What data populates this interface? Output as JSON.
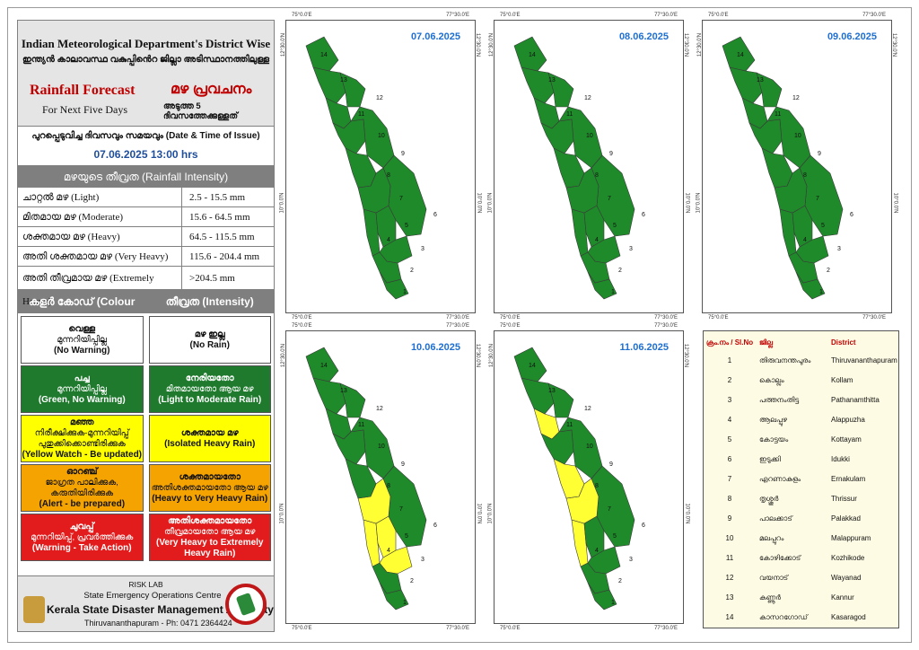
{
  "header": {
    "title": "Indian Meteorological Department's District Wise",
    "title_ml": "ഇന്ത്യൻ കാലാവസ്ഥ വകുപ്പിൻെറ ജില്ലാ അടിസ്ഥാനത്തിലുള്ള",
    "forecast_en": "Rainfall Forecast",
    "forecast_ml": "മഴ പ്രവചനം",
    "subtitle_en": "For Next Five Days",
    "subtitle_ml": "അടുത്ത 5 ദിവസത്തേക്കുള്ളത്"
  },
  "issue": {
    "label": "പുറപ്പെടുവിച്ച ദിവസവും സമയവും (Date & Time of Issue)",
    "value": "07.06.2025  13:00 hrs"
  },
  "intensity": {
    "heading": "മഴയുടെ തീവ്രത (Rainfall Intensity)",
    "rows": [
      {
        "label": "ചാറ്റൽ മഴ (Light)",
        "range": "2.5 - 15.5 mm"
      },
      {
        "label": "മിതമായ മഴ (Moderate)",
        "range": "15.6 - 64.5 mm"
      },
      {
        "label": "ശക്തമായ മഴ (Heavy)",
        "range": "64.5 - 115.5 mm"
      },
      {
        "label": "അതി ശക്തമായ മഴ (Very Heavy)",
        "range": "115.6 - 204.4 mm"
      },
      {
        "label": "അതി തീവ്രമായ മഴ (Extremely Heavy)",
        "range": ">204.5 mm"
      }
    ]
  },
  "colour_code": {
    "col1": "കളർ കോഡ് (Colour Code)",
    "col2": "തീവ്രത (Intensity)",
    "rows": [
      {
        "code_ml": "വെള്ള",
        "code_sub": "മുന്നറിയിപ്പില്ല",
        "code_en": "(No Warning)",
        "int_ml": "മഴ ഇല്ല",
        "int_en": "(No Rain)",
        "color": "#ffffff"
      },
      {
        "code_ml": "പച്ച",
        "code_sub": "മുന്നറിയിപ്പില്ല",
        "code_en": "(Green, No Warning)",
        "int_ml": "നേരിയതോ",
        "int_sub": "മിതമായതോ ആയ മഴ",
        "int_en": "(Light to Moderate Rain)",
        "color": "#1f7a2e"
      },
      {
        "code_ml": "മഞ്ഞ",
        "code_sub": "നിരീക്ഷിക്കുക-മുന്നറിയിപ്പ് പുതുക്കിക്കൊണ്ടിരിക്കുക",
        "code_en": "(Yellow Watch - Be updated)",
        "int_ml": "ശക്തമായ മഴ",
        "int_en": "(Isolated Heavy Rain)",
        "color": "#ffff00"
      },
      {
        "code_ml": "ഓറഞ്ച്",
        "code_sub": "ജാഗ്രത പാലിക്കുക, കരുതിയിരിക്കുക",
        "code_en": "(Alert - be prepared)",
        "int_ml": "ശക്തമായതോ",
        "int_sub": "അതിശക്തമായതോ ആയ മഴ",
        "int_en": "(Heavy to Very Heavy Rain)",
        "color": "#f4a300"
      },
      {
        "code_ml": "ചുവപ്പ്",
        "code_sub": "മുന്നറിയിപ്പ്, പ്രവർത്തിക്കുക",
        "code_en": "(Warning - Take Action)",
        "int_ml": "അതിശക്തമായതോ",
        "int_sub": "തീവ്രമായതോ ആയ മഴ",
        "int_en": "(Very Heavy to Extremely Heavy Rain)",
        "color": "#e21c1c"
      }
    ]
  },
  "footer": {
    "lab": "RISK LAB",
    "centre": "State Emergency Operations Centre",
    "authority": "Kerala State Disaster Management Authority",
    "contact": "Thiruvananthapuram - Ph: 0471 2364424"
  },
  "map_ticks": {
    "lon_left": "75°0.0'E",
    "lon_right": "77°30.0'E",
    "lat_top": "12°30.0'N",
    "lat_mid": "10°0.0'N"
  },
  "maps": [
    {
      "date": "07.06.2025",
      "yellow_districts": []
    },
    {
      "date": "08.06.2025",
      "yellow_districts": []
    },
    {
      "date": "09.06.2025",
      "yellow_districts": []
    },
    {
      "date": "10.06.2025",
      "yellow_districts": [
        3,
        4,
        5,
        7
      ]
    },
    {
      "date": "11.06.2025",
      "yellow_districts": [
        4,
        7,
        8,
        11
      ]
    }
  ],
  "colors": {
    "green": "#1f8a2a",
    "yellow": "#ffff33",
    "boundary": "#3a3a3a",
    "date_text": "#1f6fd1"
  },
  "district_table": {
    "headers": {
      "no": "ക്രം.നം / Sl.No",
      "ml": "ജില്ല",
      "en": "District"
    },
    "rows": [
      {
        "no": "1",
        "ml": "തിരുവനന്തപുരം",
        "en": "Thiruvananthapuram"
      },
      {
        "no": "2",
        "ml": "കൊല്ലം",
        "en": "Kollam"
      },
      {
        "no": "3",
        "ml": "പത്തനംതിട്ട",
        "en": "Pathanamthitta"
      },
      {
        "no": "4",
        "ml": "ആലപ്പുഴ",
        "en": "Alappuzha"
      },
      {
        "no": "5",
        "ml": "കോട്ടയം",
        "en": "Kottayam"
      },
      {
        "no": "6",
        "ml": "ഇടുക്കി",
        "en": "Idukki"
      },
      {
        "no": "7",
        "ml": "എറണാകുളം",
        "en": "Ernakulam"
      },
      {
        "no": "8",
        "ml": "തൃശ്ശൂർ",
        "en": "Thrissur"
      },
      {
        "no": "9",
        "ml": "പാലക്കാട്",
        "en": "Palakkad"
      },
      {
        "no": "10",
        "ml": "മലപ്പുറം",
        "en": "Malappuram"
      },
      {
        "no": "11",
        "ml": "കോഴിക്കോട്",
        "en": "Kozhikode"
      },
      {
        "no": "12",
        "ml": "വയനാട്",
        "en": "Wayanad"
      },
      {
        "no": "13",
        "ml": "കണ്ണൂർ",
        "en": "Kannur"
      },
      {
        "no": "14",
        "ml": "കാസറഗോഡ്",
        "en": "Kasaragod"
      }
    ]
  }
}
